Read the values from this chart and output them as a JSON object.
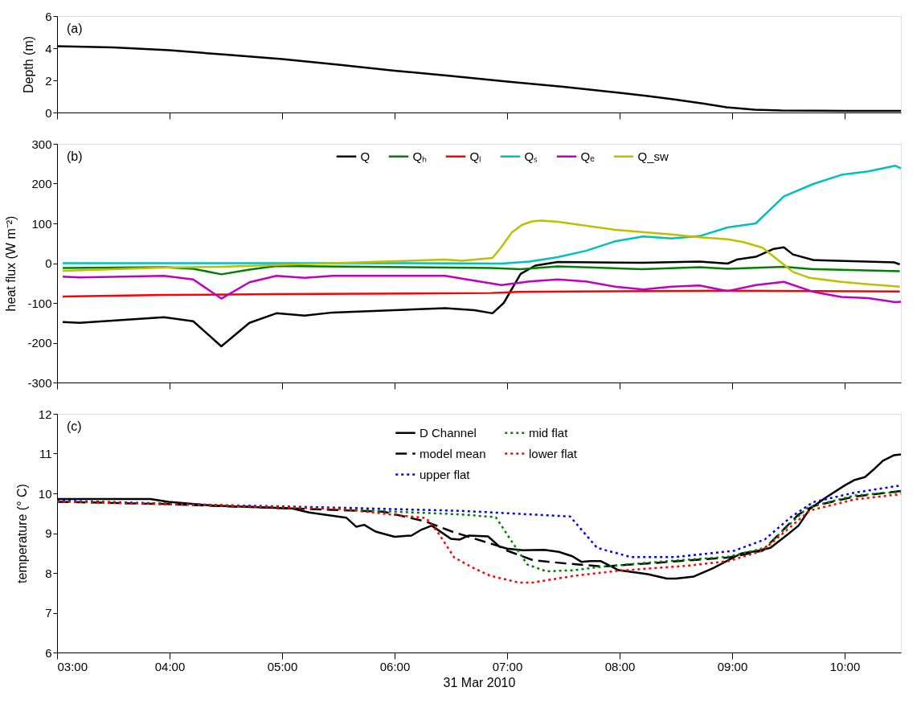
{
  "chart_data": [
    {
      "type": "line",
      "ylabel": "Depth (m)",
      "annotations": [
        "(a)"
      ],
      "xlim": [
        3,
        10.5
      ],
      "xticks": [
        {
          "value": 3,
          "label": null
        },
        {
          "value": 4,
          "label": null
        },
        {
          "value": 5,
          "label": null
        },
        {
          "value": 6,
          "label": null
        },
        {
          "value": 7,
          "label": null
        },
        {
          "value": 8,
          "label": null
        },
        {
          "value": 9,
          "label": null
        },
        {
          "value": 10,
          "label": null
        }
      ],
      "ylim": [
        0,
        6
      ],
      "yticks": [
        0,
        2,
        4,
        6
      ],
      "tick_labels": "y",
      "grid": false,
      "legend": false,
      "series": [
        {
          "color": "#000000",
          "line_style": "solid",
          "x": [
            3.0,
            3.5,
            4.0,
            4.5,
            5.0,
            5.5,
            6.0,
            6.5,
            7.0,
            7.5,
            8.0,
            8.25,
            8.5,
            8.75,
            8.95,
            9.2,
            9.44,
            10.0,
            10.5
          ],
          "values": [
            4.13,
            4.05,
            3.87,
            3.6,
            3.33,
            2.97,
            2.6,
            2.27,
            1.93,
            1.6,
            1.23,
            1.03,
            0.8,
            0.55,
            0.33,
            0.18,
            0.12,
            0.1,
            0.1
          ]
        }
      ]
    },
    {
      "type": "line",
      "ylabel": "heat flux (W m⁻²)",
      "annotations": [
        "(b)"
      ],
      "xlim": [
        3,
        10.5
      ],
      "xticks": [
        {
          "value": 3,
          "label": null
        },
        {
          "value": 4,
          "label": null
        },
        {
          "value": 5,
          "label": null
        },
        {
          "value": 6,
          "label": null
        },
        {
          "value": 7,
          "label": null
        },
        {
          "value": 8,
          "label": null
        },
        {
          "value": 9,
          "label": null
        },
        {
          "value": 10,
          "label": null
        }
      ],
      "ylim": [
        -300,
        300
      ],
      "yticks": [
        -300,
        -200,
        -100,
        0,
        100,
        200,
        300
      ],
      "tick_labels": "y",
      "grid": false,
      "legend": "top",
      "series": [
        {
          "name": "Q",
          "color": "#000000",
          "line_style": "solid",
          "x": [
            3.05,
            3.2,
            3.95,
            4.21,
            4.46,
            4.71,
            4.95,
            5.2,
            5.45,
            6.45,
            6.71,
            6.87,
            6.97,
            7.12,
            7.25,
            7.45,
            8.2,
            8.71,
            8.96,
            9.04,
            9.21,
            9.37,
            9.46,
            9.54,
            9.72,
            10.44,
            10.49
          ],
          "values": [
            -148,
            -150,
            -136,
            -146,
            -209,
            -150,
            -126,
            -132,
            -124,
            -113,
            -118,
            -126,
            -100,
            -27,
            -6,
            3,
            1,
            4,
            -1,
            9,
            16,
            36,
            40,
            22,
            8,
            2,
            -3
          ]
        },
        {
          "name": "Qₕ",
          "color": "#008000",
          "line_style": "solid",
          "x": [
            3.05,
            3.95,
            4.21,
            4.46,
            4.71,
            4.95,
            6.86,
            7.12,
            7.45,
            8.2,
            8.71,
            8.96,
            9.46,
            9.72,
            10.49
          ],
          "values": [
            -12,
            -10,
            -14,
            -28,
            -16,
            -7,
            -12,
            -15,
            -8,
            -15,
            -10,
            -14,
            -9,
            -15,
            -20
          ]
        },
        {
          "name": "Qₗ",
          "color": "#ff0000",
          "line_style": "solid",
          "x": [
            3.05,
            3.95,
            4.95,
            6.86,
            7.1,
            7.6,
            8.96,
            10.49
          ],
          "values": [
            -84,
            -80,
            -78,
            -75,
            -72,
            -71,
            -69,
            -71
          ]
        },
        {
          "name": "Qₛ",
          "color": "#00bfbf",
          "line_style": "solid",
          "x": [
            3.05,
            4.5,
            6.0,
            6.95,
            7.2,
            7.45,
            7.7,
            7.96,
            8.21,
            8.46,
            8.71,
            8.96,
            9.21,
            9.46,
            9.72,
            9.97,
            10.21,
            10.45,
            10.5
          ],
          "values": [
            0,
            0,
            0,
            -1,
            4,
            15,
            31,
            55,
            67,
            62,
            68,
            90,
            100,
            168,
            199,
            222,
            231,
            245,
            238
          ]
        },
        {
          "name": "Qₑ",
          "color": "#bf00bf",
          "line_style": "solid",
          "x": [
            3.05,
            3.2,
            3.95,
            4.21,
            4.46,
            4.71,
            4.95,
            5.2,
            5.45,
            6.45,
            6.6,
            6.95,
            7.2,
            7.45,
            7.7,
            7.96,
            8.21,
            8.46,
            8.71,
            8.96,
            9.21,
            9.46,
            9.72,
            9.97,
            10.21,
            10.45,
            10.5
          ],
          "values": [
            -34,
            -36,
            -32,
            -41,
            -89,
            -48,
            -32,
            -37,
            -32,
            -32,
            -39,
            -55,
            -46,
            -41,
            -46,
            -59,
            -66,
            -59,
            -56,
            -70,
            -55,
            -47,
            -72,
            -85,
            -88,
            -98,
            -97
          ]
        },
        {
          "name": "Q_sw",
          "color": "#bfbf00",
          "line_style": "solid",
          "x": [
            3.05,
            3.95,
            4.46,
            5.45,
            6.45,
            6.6,
            6.87,
            6.95,
            7.04,
            7.13,
            7.22,
            7.3,
            7.45,
            7.96,
            8.46,
            8.71,
            8.96,
            9.1,
            9.27,
            9.47,
            9.54,
            9.69,
            9.97,
            10.21,
            10.49
          ],
          "values": [
            -19,
            -11,
            -9,
            0,
            9,
            6,
            13,
            41,
            77,
            96,
            105,
            107,
            104,
            84,
            72,
            65,
            60,
            53,
            39,
            -6,
            -22,
            -37,
            -47,
            -53,
            -59
          ]
        }
      ]
    },
    {
      "type": "line",
      "ylabel": "temperature (° C)",
      "xlabel": "31 Mar 2010",
      "annotations": [
        "(c)"
      ],
      "xlim": [
        3,
        10.5
      ],
      "xticks": [
        {
          "value": 3,
          "label": "03:00"
        },
        {
          "value": 4,
          "label": "04:00"
        },
        {
          "value": 5,
          "label": "05:00"
        },
        {
          "value": 6,
          "label": "06:00"
        },
        {
          "value": 7,
          "label": "07:00"
        },
        {
          "value": 8,
          "label": "08:00"
        },
        {
          "value": 9,
          "label": "09:00"
        },
        {
          "value": 10,
          "label": "10:00"
        }
      ],
      "ylim": [
        6,
        12
      ],
      "yticks": [
        6,
        7,
        8,
        9,
        10,
        11,
        12
      ],
      "grid": false,
      "legend": "top",
      "series": [
        {
          "name": "D Channel",
          "color": "#000000",
          "line_style": "solid",
          "x": [
            3.0,
            3.83,
            3.99,
            4.4,
            5.09,
            5.24,
            5.57,
            5.66,
            5.73,
            5.83,
            6.0,
            6.15,
            6.24,
            6.33,
            6.5,
            6.58,
            6.66,
            6.83,
            6.93,
            7.0,
            7.14,
            7.33,
            7.46,
            7.58,
            7.66,
            7.74,
            7.83,
            7.99,
            8.25,
            8.42,
            8.5,
            8.66,
            8.83,
            9.08,
            9.22,
            9.34,
            9.49,
            9.59,
            9.69,
            9.84,
            10.0,
            10.09,
            10.18,
            10.25,
            10.34,
            10.44,
            10.5
          ],
          "values": [
            9.86,
            9.86,
            9.79,
            9.69,
            9.62,
            9.52,
            9.39,
            9.16,
            9.21,
            9.04,
            8.91,
            8.94,
            9.09,
            9.19,
            8.86,
            8.84,
            8.94,
            8.92,
            8.67,
            8.61,
            8.57,
            8.58,
            8.53,
            8.42,
            8.28,
            8.3,
            8.3,
            8.07,
            7.97,
            7.86,
            7.86,
            7.91,
            8.12,
            8.49,
            8.55,
            8.63,
            8.96,
            9.19,
            9.61,
            9.91,
            10.2,
            10.34,
            10.41,
            10.58,
            10.82,
            10.96,
            10.98
          ]
        },
        {
          "name": "model mean",
          "color": "#000000",
          "line_style": "dashed",
          "x": [
            3.0,
            3.99,
            5.09,
            5.9,
            6.28,
            6.51,
            6.92,
            7.0,
            7.23,
            7.48,
            7.85,
            8.35,
            8.97,
            9.27,
            9.59,
            9.72,
            10.09,
            10.5
          ],
          "values": [
            9.79,
            9.73,
            9.62,
            9.54,
            9.29,
            9.04,
            8.68,
            8.56,
            8.32,
            8.25,
            8.16,
            8.26,
            8.39,
            8.56,
            9.47,
            9.68,
            9.92,
            10.06
          ]
        },
        {
          "name": "upper flat",
          "color": "#0000ff",
          "line_style": "dotted",
          "x": [
            3.0,
            4.4,
            5.52,
            6.6,
            7.56,
            7.8,
            8.1,
            8.5,
            9.02,
            9.29,
            9.52,
            9.72,
            10.09,
            10.5
          ],
          "values": [
            9.82,
            9.71,
            9.64,
            9.56,
            9.42,
            8.63,
            8.4,
            8.4,
            8.56,
            8.84,
            9.4,
            9.78,
            10.02,
            10.2
          ]
        },
        {
          "name": "mid flat",
          "color": "#008000",
          "line_style": "dotted",
          "x": [
            3.0,
            4.4,
            5.52,
            6.0,
            6.6,
            6.9,
            7.03,
            7.18,
            7.35,
            7.6,
            7.85,
            8.35,
            8.97,
            9.29,
            9.67,
            10.09,
            10.5
          ],
          "values": [
            9.8,
            9.7,
            9.61,
            9.54,
            9.47,
            9.4,
            8.84,
            8.21,
            8.04,
            8.07,
            8.16,
            8.28,
            8.41,
            8.63,
            9.64,
            9.95,
            10.04
          ]
        },
        {
          "name": "lower flat",
          "color": "#ff0000",
          "line_style": "dotted",
          "x": [
            3.0,
            4.4,
            5.52,
            6.0,
            6.28,
            6.38,
            6.53,
            6.71,
            6.85,
            7.1,
            7.23,
            7.6,
            7.97,
            8.6,
            8.97,
            9.27,
            9.69,
            10.09,
            10.5
          ],
          "values": [
            9.8,
            9.7,
            9.61,
            9.46,
            9.38,
            9.04,
            8.39,
            8.11,
            7.93,
            7.76,
            7.76,
            7.93,
            8.05,
            8.18,
            8.3,
            8.56,
            9.57,
            9.85,
            9.98
          ]
        }
      ]
    }
  ]
}
